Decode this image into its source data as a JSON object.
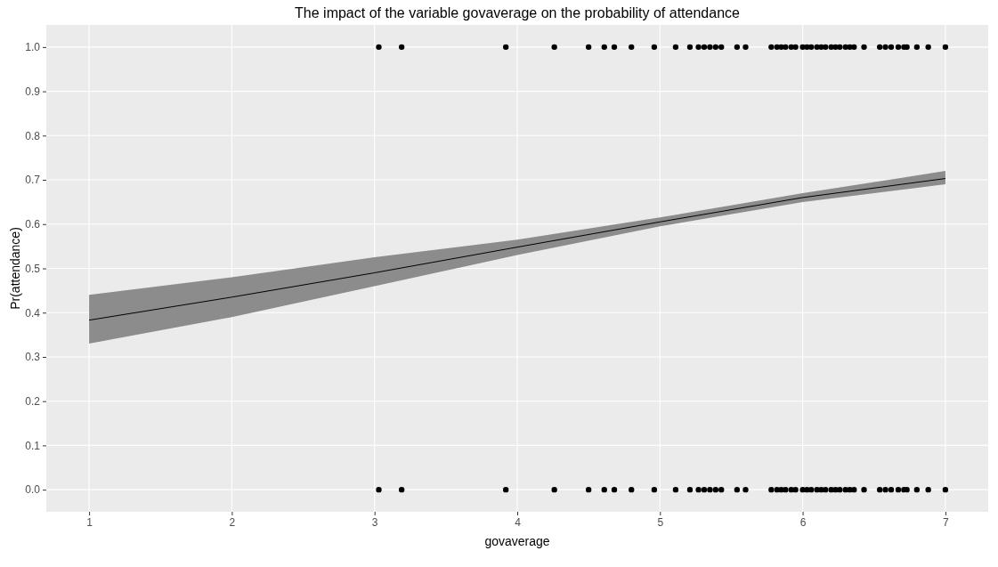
{
  "chart_data": {
    "type": "scatter",
    "title": "The impact of the variable govaverage on the probability of attendance",
    "xlabel": "govaverage",
    "ylabel": "Pr(attendance)",
    "xlim": [
      0.7,
      7.3
    ],
    "ylim": [
      -0.05,
      1.05
    ],
    "xticks": [
      1,
      2,
      3,
      4,
      5,
      6,
      7
    ],
    "yticks": [
      {
        "value": 0,
        "label": "0.0"
      },
      {
        "value": 0.1,
        "label": "0.1"
      },
      {
        "value": 0.2,
        "label": "0.2"
      },
      {
        "value": 0.3,
        "label": "0.3"
      },
      {
        "value": 0.4,
        "label": "0.4"
      },
      {
        "value": 0.5,
        "label": "0.5"
      },
      {
        "value": 0.6,
        "label": "0.6"
      },
      {
        "value": 0.7,
        "label": "0.7"
      },
      {
        "value": 0.8,
        "label": "0.8"
      },
      {
        "value": 0.9,
        "label": "0.9"
      },
      {
        "value": 1,
        "label": "1.0"
      }
    ],
    "grid": true,
    "series": [
      {
        "type": "line",
        "color": "#000000",
        "x": [
          1,
          2,
          3,
          4,
          5,
          6,
          7
        ],
        "values": [
          0.383,
          0.435,
          0.49,
          0.548,
          0.605,
          0.66,
          0.703
        ],
        "lower": [
          0.33,
          0.39,
          0.46,
          0.53,
          0.595,
          0.65,
          0.69
        ],
        "upper": [
          0.44,
          0.48,
          0.525,
          0.565,
          0.615,
          0.67,
          0.72
        ]
      },
      {
        "color": "#000000",
        "marker": "circle",
        "x": [
          3.03,
          3.19,
          3.92,
          4.26,
          4.5,
          4.61,
          4.68,
          4.8,
          4.96,
          5.11,
          5.21,
          5.27,
          5.31,
          5.35,
          5.39,
          5.43,
          5.54,
          5.6,
          5.78,
          5.82,
          5.85,
          5.88,
          5.92,
          5.95,
          6.0,
          6.03,
          6.06,
          6.1,
          6.13,
          6.16,
          6.2,
          6.23,
          6.26,
          6.3,
          6.33,
          6.36,
          6.43,
          6.54,
          6.58,
          6.62,
          6.67,
          6.71,
          6.73,
          6.8,
          6.88,
          7.0
        ],
        "values": [
          1,
          1,
          1,
          1,
          1,
          1,
          1,
          1,
          1,
          1,
          1,
          1,
          1,
          1,
          1,
          1,
          1,
          1,
          1,
          1,
          1,
          1,
          1,
          1,
          1,
          1,
          1,
          1,
          1,
          1,
          1,
          1,
          1,
          1,
          1,
          1,
          1,
          1,
          1,
          1,
          1,
          1,
          1,
          1,
          1,
          1
        ]
      },
      {
        "color": "#000000",
        "marker": "circle",
        "x": [
          3.03,
          3.19,
          3.92,
          4.26,
          4.5,
          4.61,
          4.68,
          4.8,
          4.96,
          5.11,
          5.21,
          5.27,
          5.31,
          5.35,
          5.39,
          5.43,
          5.54,
          5.6,
          5.78,
          5.82,
          5.85,
          5.88,
          5.92,
          5.95,
          6.0,
          6.03,
          6.06,
          6.1,
          6.13,
          6.16,
          6.2,
          6.23,
          6.26,
          6.3,
          6.33,
          6.36,
          6.43,
          6.54,
          6.58,
          6.62,
          6.67,
          6.71,
          6.73,
          6.8,
          6.88,
          7.0
        ],
        "values": [
          0,
          0,
          0,
          0,
          0,
          0,
          0,
          0,
          0,
          0,
          0,
          0,
          0,
          0,
          0,
          0,
          0,
          0,
          0,
          0,
          0,
          0,
          0,
          0,
          0,
          0,
          0,
          0,
          0,
          0,
          0,
          0,
          0,
          0,
          0,
          0,
          0,
          0,
          0,
          0,
          0,
          0,
          0,
          0,
          0,
          0
        ]
      }
    ]
  }
}
